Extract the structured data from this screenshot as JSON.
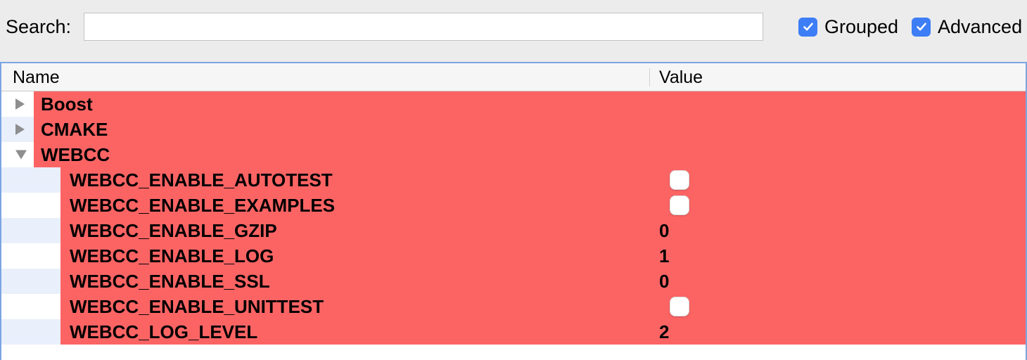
{
  "toolbar": {
    "search_label": "Search:",
    "search_value": "",
    "checkboxes": [
      {
        "label": "Grouped",
        "checked": true
      },
      {
        "label": "Advanced",
        "checked": true
      }
    ]
  },
  "table": {
    "columns": [
      {
        "label": "Name"
      },
      {
        "label": "Value"
      }
    ],
    "rows": [
      {
        "kind": "group",
        "name": "Boost",
        "expanded": false
      },
      {
        "kind": "group",
        "name": "CMAKE",
        "expanded": false
      },
      {
        "kind": "group",
        "name": "WEBCC",
        "expanded": true
      },
      {
        "kind": "entry",
        "name": "WEBCC_ENABLE_AUTOTEST",
        "value_kind": "checkbox",
        "checked": false
      },
      {
        "kind": "entry",
        "name": "WEBCC_ENABLE_EXAMPLES",
        "value_kind": "checkbox",
        "checked": false
      },
      {
        "kind": "entry",
        "name": "WEBCC_ENABLE_GZIP",
        "value_kind": "text",
        "value": "0"
      },
      {
        "kind": "entry",
        "name": "WEBCC_ENABLE_LOG",
        "value_kind": "text",
        "value": "1"
      },
      {
        "kind": "entry",
        "name": "WEBCC_ENABLE_SSL",
        "value_kind": "text",
        "value": "0"
      },
      {
        "kind": "entry",
        "name": "WEBCC_ENABLE_UNITTEST",
        "value_kind": "checkbox",
        "checked": false
      },
      {
        "kind": "entry",
        "name": "WEBCC_LOG_LEVEL",
        "value_kind": "text",
        "value": "2"
      }
    ]
  },
  "colors": {
    "accent_blue": "#3d7df6",
    "dirty_row_red": "#fc6464",
    "focus_ring_blue": "#7ca5e2",
    "alt_row_tint": "#e9effb",
    "window_background": "#ececec"
  }
}
